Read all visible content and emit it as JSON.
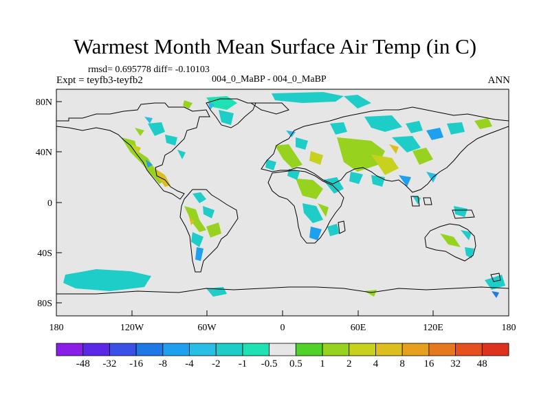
{
  "header": {
    "title": "Warmest Month Mean Surface Air Temp (in C)",
    "stats": "rmsd= 0.695778 diff= -0.10103",
    "experiment": "Expt = teyfb3-teyfb2",
    "period": "004_0_MaBP - 004_0_MaBP",
    "season": "ANN"
  },
  "map": {
    "background_color": "#e6e6e6",
    "x_ticks": [
      "180",
      "120W",
      "60W",
      "0",
      "60E",
      "120E",
      "180"
    ],
    "y_ticks": [
      "80N",
      "40N",
      "0",
      "40S",
      "80S"
    ]
  },
  "colorbar": {
    "colors": [
      "#8a1ee6",
      "#5a28e6",
      "#3a50e6",
      "#1e78e6",
      "#1ea0f0",
      "#28bee6",
      "#1ecdc8",
      "#1ee1b4",
      "#e6e6e6",
      "#50d228",
      "#96d21e",
      "#c8d21e",
      "#dcbe1e",
      "#e6a01e",
      "#e6781e",
      "#e6501e",
      "#dc321e"
    ],
    "labels": [
      "-48",
      "-32",
      "-16",
      "-8",
      "-4",
      "-2",
      "-1",
      "-0.5",
      "0.5",
      "1",
      "2",
      "4",
      "8",
      "16",
      "32",
      "48"
    ]
  }
}
